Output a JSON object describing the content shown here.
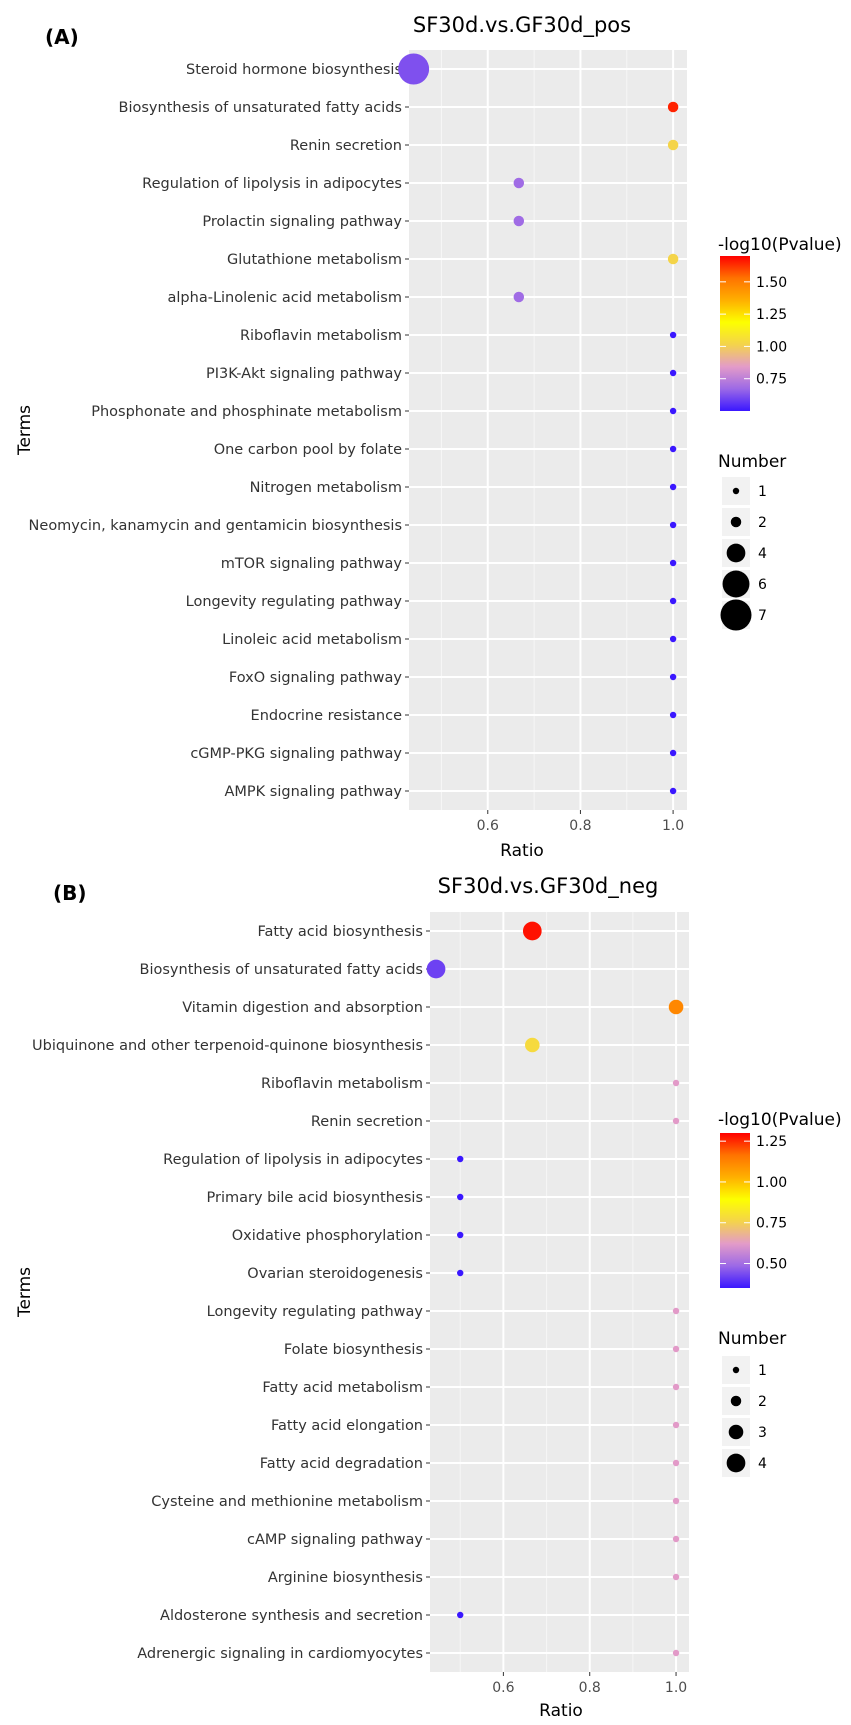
{
  "chart_data": [
    {
      "panel": "(A)",
      "type": "scatter",
      "title": "SF30d.vs.GF30d_pos",
      "xlabel": "Ratio",
      "ylabel": "Terms",
      "xlim": [
        0.43,
        1.03
      ],
      "xticks": [
        0.6,
        0.8,
        1.0
      ],
      "xtick_labels": [
        "0.6",
        "0.8",
        "1.0"
      ],
      "color_legend": {
        "title": "-log10(Pvalue)",
        "min": 0.5,
        "max": 1.7,
        "ticks": [
          0.75,
          1.0,
          1.25,
          1.5
        ],
        "tick_labels": [
          "0.75",
          "1.00",
          "1.25",
          "1.50"
        ],
        "colors": [
          "#3a17ff",
          "#9c69e6",
          "#e39bc8",
          "#f4d34c",
          "#fdff00",
          "#ffb000",
          "#ff7300",
          "#ff0000"
        ]
      },
      "size_legend": {
        "title": "Number",
        "values": [
          1,
          2,
          4,
          6,
          7
        ],
        "labels": [
          "1",
          "2",
          "4",
          "6",
          "7"
        ]
      },
      "points": [
        {
          "term": "Steroid hormone biosynthesis",
          "ratio": 0.44,
          "number": 7,
          "neglog10p": 0.62
        },
        {
          "term": "Biosynthesis of unsaturated fatty acids",
          "ratio": 1.0,
          "number": 2,
          "neglog10p": 1.65
        },
        {
          "term": "Renin secretion",
          "ratio": 1.0,
          "number": 2,
          "neglog10p": 1.02
        },
        {
          "term": "Regulation of lipolysis in adipocytes",
          "ratio": 0.667,
          "number": 2,
          "neglog10p": 0.68
        },
        {
          "term": "Prolactin signaling pathway",
          "ratio": 0.667,
          "number": 2,
          "neglog10p": 0.68
        },
        {
          "term": "Glutathione metabolism",
          "ratio": 1.0,
          "number": 2,
          "neglog10p": 1.02
        },
        {
          "term": "alpha-Linolenic acid metabolism",
          "ratio": 0.667,
          "number": 2,
          "neglog10p": 0.68
        },
        {
          "term": "Riboflavin metabolism",
          "ratio": 1.0,
          "number": 1,
          "neglog10p": 0.5
        },
        {
          "term": "PI3K-Akt signaling pathway",
          "ratio": 1.0,
          "number": 1,
          "neglog10p": 0.5
        },
        {
          "term": "Phosphonate and phosphinate metabolism",
          "ratio": 1.0,
          "number": 1,
          "neglog10p": 0.5
        },
        {
          "term": "One carbon pool by folate",
          "ratio": 1.0,
          "number": 1,
          "neglog10p": 0.5
        },
        {
          "term": "Nitrogen metabolism",
          "ratio": 1.0,
          "number": 1,
          "neglog10p": 0.5
        },
        {
          "term": "Neomycin, kanamycin and gentamicin biosynthesis",
          "ratio": 1.0,
          "number": 1,
          "neglog10p": 0.5
        },
        {
          "term": "mTOR signaling pathway",
          "ratio": 1.0,
          "number": 1,
          "neglog10p": 0.5
        },
        {
          "term": "Longevity regulating pathway",
          "ratio": 1.0,
          "number": 1,
          "neglog10p": 0.5
        },
        {
          "term": "Linoleic acid metabolism",
          "ratio": 1.0,
          "number": 1,
          "neglog10p": 0.5
        },
        {
          "term": "FoxO signaling pathway",
          "ratio": 1.0,
          "number": 1,
          "neglog10p": 0.5
        },
        {
          "term": "Endocrine resistance",
          "ratio": 1.0,
          "number": 1,
          "neglog10p": 0.5
        },
        {
          "term": "cGMP-PKG signaling pathway",
          "ratio": 1.0,
          "number": 1,
          "neglog10p": 0.5
        },
        {
          "term": "AMPK signaling pathway",
          "ratio": 1.0,
          "number": 1,
          "neglog10p": 0.5
        }
      ]
    },
    {
      "panel": "(B)",
      "type": "scatter",
      "title": "SF30d.vs.GF30d_neg",
      "xlabel": "Ratio",
      "ylabel": "Terms",
      "xlim": [
        0.43,
        1.03
      ],
      "xticks": [
        0.6,
        0.8,
        1.0
      ],
      "xtick_labels": [
        "0.6",
        "0.8",
        "1.0"
      ],
      "color_legend": {
        "title": "-log10(Pvalue)",
        "min": 0.35,
        "max": 1.3,
        "ticks": [
          0.5,
          0.75,
          1.0,
          1.25
        ],
        "tick_labels": [
          "0.50",
          "0.75",
          "1.00",
          "1.25"
        ],
        "colors": [
          "#3a17ff",
          "#9c69e6",
          "#e39bc8",
          "#f4d34c",
          "#fdff00",
          "#ffb000",
          "#ff7300",
          "#ff0000"
        ]
      },
      "size_legend": {
        "title": "Number",
        "values": [
          1,
          2,
          3,
          4
        ],
        "labels": [
          "1",
          "2",
          "3",
          "4"
        ]
      },
      "points": [
        {
          "term": "Fatty acid biosynthesis",
          "ratio": 0.667,
          "number": 4,
          "neglog10p": 1.28
        },
        {
          "term": "Biosynthesis of unsaturated fatty acids",
          "ratio": 0.444,
          "number": 4,
          "neglog10p": 0.42
        },
        {
          "term": "Vitamin digestion and absorption",
          "ratio": 1.0,
          "number": 3,
          "neglog10p": 1.12
        },
        {
          "term": "Ubiquinone and other terpenoid-quinone biosynthesis",
          "ratio": 0.667,
          "number": 3,
          "neglog10p": 0.78
        },
        {
          "term": "Riboflavin metabolism",
          "ratio": 1.0,
          "number": 1,
          "neglog10p": 0.62
        },
        {
          "term": "Renin secretion",
          "ratio": 1.0,
          "number": 1,
          "neglog10p": 0.62
        },
        {
          "term": "Regulation of lipolysis in adipocytes",
          "ratio": 0.5,
          "number": 1,
          "neglog10p": 0.35
        },
        {
          "term": "Primary bile acid biosynthesis",
          "ratio": 0.5,
          "number": 1,
          "neglog10p": 0.35
        },
        {
          "term": "Oxidative phosphorylation",
          "ratio": 0.5,
          "number": 1,
          "neglog10p": 0.35
        },
        {
          "term": "Ovarian steroidogenesis",
          "ratio": 0.5,
          "number": 1,
          "neglog10p": 0.35
        },
        {
          "term": "Longevity regulating pathway",
          "ratio": 1.0,
          "number": 1,
          "neglog10p": 0.62
        },
        {
          "term": "Folate biosynthesis",
          "ratio": 1.0,
          "number": 1,
          "neglog10p": 0.62
        },
        {
          "term": "Fatty acid metabolism",
          "ratio": 1.0,
          "number": 1,
          "neglog10p": 0.62
        },
        {
          "term": "Fatty acid elongation",
          "ratio": 1.0,
          "number": 1,
          "neglog10p": 0.62
        },
        {
          "term": "Fatty acid degradation",
          "ratio": 1.0,
          "number": 1,
          "neglog10p": 0.62
        },
        {
          "term": "Cysteine and methionine metabolism",
          "ratio": 1.0,
          "number": 1,
          "neglog10p": 0.62
        },
        {
          "term": "cAMP signaling pathway",
          "ratio": 1.0,
          "number": 1,
          "neglog10p": 0.62
        },
        {
          "term": "Arginine biosynthesis",
          "ratio": 1.0,
          "number": 1,
          "neglog10p": 0.62
        },
        {
          "term": "Aldosterone synthesis and secretion",
          "ratio": 0.5,
          "number": 1,
          "neglog10p": 0.35
        },
        {
          "term": "Adrenergic signaling in cardiomyocytes",
          "ratio": 1.0,
          "number": 1,
          "neglog10p": 0.62
        }
      ]
    }
  ]
}
